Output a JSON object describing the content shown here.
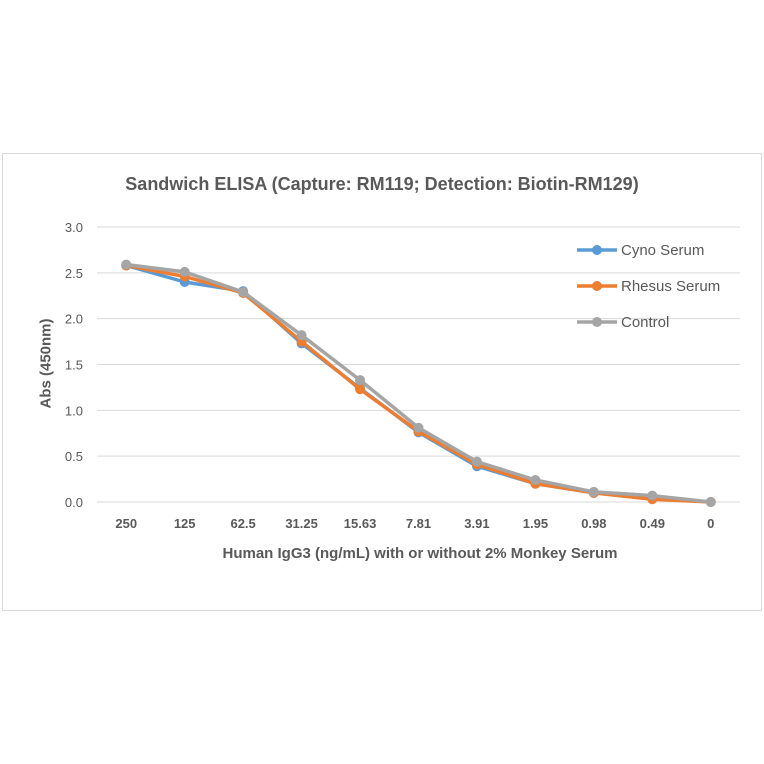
{
  "chart_data": {
    "type": "line",
    "title": "Sandwich ELISA (Capture:  RM119; Detection: Biotin-RM129)",
    "xlabel": "Human IgG3 (ng/mL) with or without 2% Monkey Serum",
    "ylabel": "Abs (450nm)",
    "ylim": [
      0,
      3.0
    ],
    "yticks": [
      "0.0",
      "0.5",
      "1.0",
      "1.5",
      "2.0",
      "2.5",
      "3.0"
    ],
    "grid": true,
    "legend": "top-right",
    "categories": [
      "250",
      "125",
      "62.5",
      "31.25",
      "15.63",
      "7.81",
      "3.91",
      "1.95",
      "0.98",
      "0.49",
      "0"
    ],
    "series": [
      {
        "name": "Cyno Serum",
        "color": "#5b9bd5",
        "values": [
          2.58,
          2.4,
          2.3,
          1.73,
          1.24,
          0.76,
          0.39,
          0.2,
          0.1,
          0.05,
          0.0
        ]
      },
      {
        "name": "Rhesus Serum",
        "color": "#ed7d31",
        "values": [
          2.58,
          2.46,
          2.28,
          1.75,
          1.23,
          0.77,
          0.41,
          0.2,
          0.1,
          0.03,
          0.0
        ]
      },
      {
        "name": "Control",
        "color": "#a5a5a5",
        "values": [
          2.59,
          2.51,
          2.29,
          1.82,
          1.33,
          0.81,
          0.44,
          0.24,
          0.11,
          0.07,
          0.0
        ]
      }
    ]
  }
}
